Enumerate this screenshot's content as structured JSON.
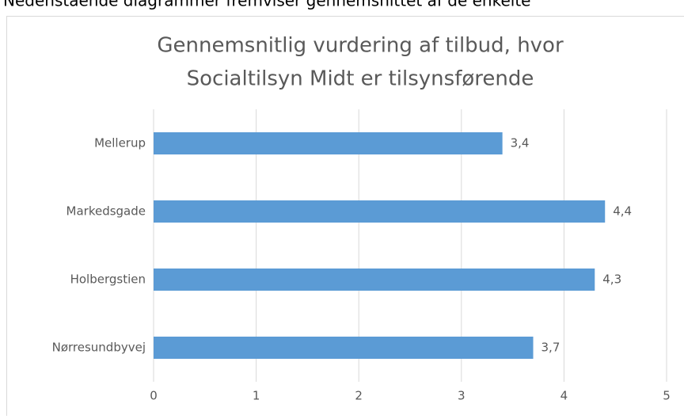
{
  "caption": "Nedenstående diagrammer fremviser gennemsnittet af de enkelte",
  "chart_data": {
    "type": "hbar",
    "title": [
      "Gennemsnitlig vurdering af tilbud, hvor",
      "Socialtilsyn Midt er tilsynsførende"
    ],
    "categories": [
      "Mellerup",
      "Markedsgade",
      "Holbergstien",
      "Nørresundbyvej"
    ],
    "values": [
      3.4,
      4.4,
      4.3,
      3.7
    ],
    "value_labels": [
      "3,4",
      "4,4",
      "4,3",
      "3,7"
    ],
    "color": "#5b9bd5",
    "xlim": [
      0,
      5
    ],
    "xticks": [
      0,
      1,
      2,
      3,
      4,
      5
    ],
    "grid": true
  }
}
